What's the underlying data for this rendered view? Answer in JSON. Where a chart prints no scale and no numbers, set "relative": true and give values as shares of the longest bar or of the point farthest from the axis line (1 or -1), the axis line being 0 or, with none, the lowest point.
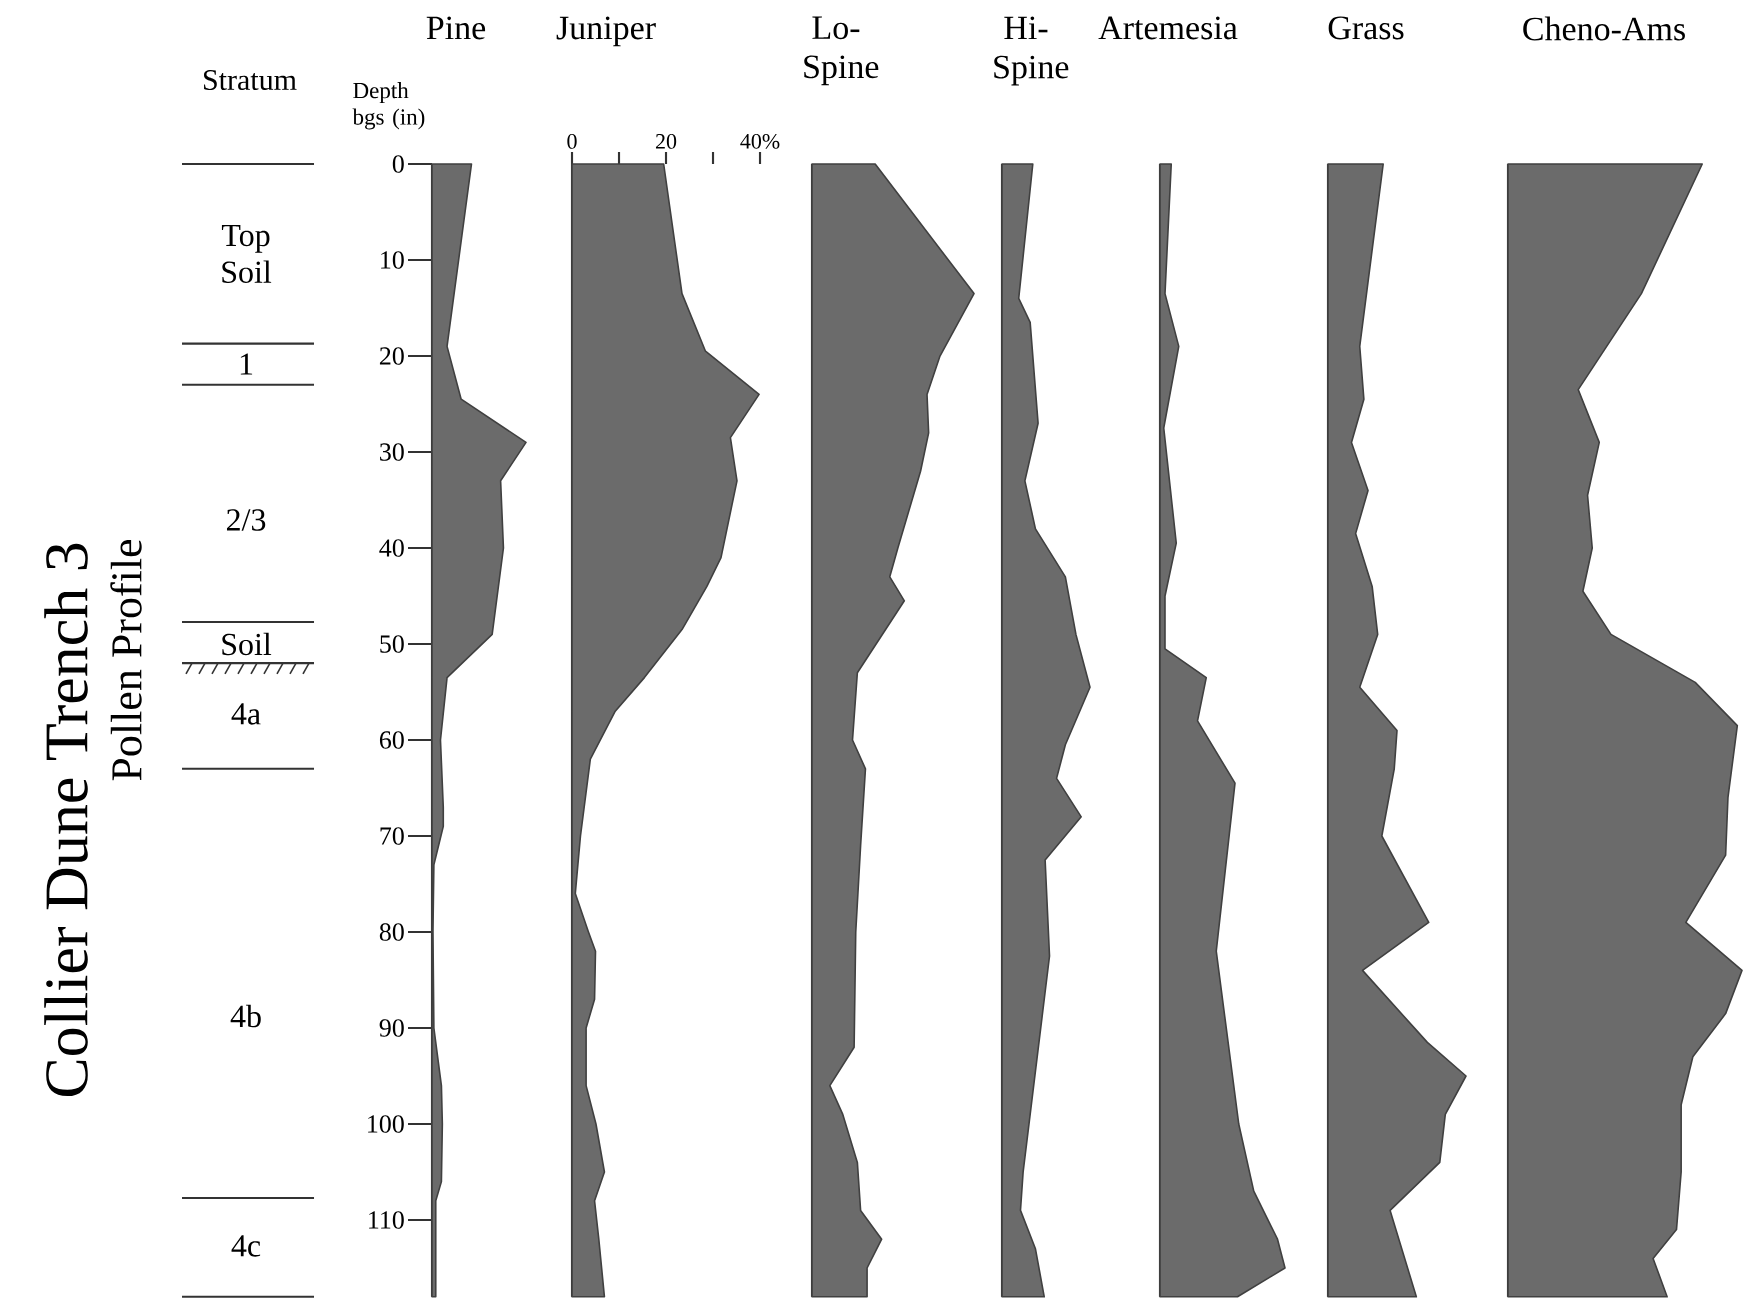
{
  "chart_data": [
    {
      "type": "other",
      "title": "Collier Dune Trench 3",
      "subtitle": "Pollen Profile",
      "annotations": [
        "Stratum",
        "Top Soil",
        "1",
        "2/3",
        "Soil",
        "4a",
        "4b",
        "4c"
      ]
    },
    {
      "type": "area",
      "orientation": "horizontal",
      "relative": true,
      "title": "Pine",
      "ylabel": "Depth bgs (in)",
      "color": "#6b6b6b",
      "ylim": [
        118,
        0
      ],
      "yticks": [
        0,
        10,
        20,
        30,
        40,
        50,
        60,
        70,
        80,
        90,
        100,
        110
      ],
      "tick_labels": "y",
      "x": [
        0,
        19,
        24.5,
        29,
        33,
        40,
        49,
        53.5,
        60,
        67,
        69,
        73,
        80,
        90,
        96,
        100,
        106,
        108,
        118
      ],
      "values": [
        0.42,
        0.16,
        0.31,
        1,
        0.73,
        0.76,
        0.64,
        0.16,
        0.09,
        0.12,
        0.12,
        0.02,
        0.01,
        0.02,
        0.1,
        0.11,
        0.1,
        0.04,
        0.04
      ]
    },
    {
      "type": "area",
      "orientation": "horizontal",
      "title": "Juniper",
      "color": "#6b6b6b",
      "xlim": [
        0,
        40
      ],
      "ylim": [
        118,
        0
      ],
      "xticks": [
        0,
        {
          "value": 10,
          "label": null
        },
        20,
        {
          "value": 30,
          "label": null
        },
        {
          "value": 40,
          "label": "40%"
        }
      ],
      "tick_labels": "x",
      "x": [
        0,
        13.5,
        19.5,
        24,
        28.5,
        33,
        41,
        44,
        48.5,
        53.5,
        57,
        62,
        70,
        76,
        80,
        82,
        87,
        90,
        96,
        100,
        105,
        108,
        112,
        118
      ],
      "values": [
        19.5,
        23.4,
        28.4,
        39.8,
        33.7,
        35.1,
        31.7,
        28.7,
        23.4,
        15.4,
        9.2,
        3.9,
        1.8,
        0.7,
        3.5,
        5.0,
        4.8,
        3.0,
        3.0,
        5.1,
        6.9,
        4.8,
        5.7,
        6.9
      ]
    },
    {
      "type": "area",
      "orientation": "horizontal",
      "relative": true,
      "title": "Lo-Spine",
      "color": "#6b6b6b",
      "ylim": [
        118,
        0
      ],
      "tick_labels": false,
      "x": [
        0,
        13.5,
        20,
        24,
        28,
        32,
        40,
        43,
        45.5,
        53,
        60,
        63,
        71,
        80,
        92,
        96,
        99,
        104,
        109,
        112,
        115,
        118
      ],
      "values": [
        0.39,
        1,
        0.79,
        0.71,
        0.72,
        0.67,
        0.53,
        0.48,
        0.57,
        0.28,
        0.25,
        0.33,
        0.3,
        0.27,
        0.26,
        0.11,
        0.19,
        0.28,
        0.3,
        0.43,
        0.34,
        0.34
      ]
    },
    {
      "type": "area",
      "orientation": "horizontal",
      "relative": true,
      "title": "Hi-Spine",
      "color": "#6b6b6b",
      "ylim": [
        118,
        0
      ],
      "tick_labels": false,
      "x": [
        0,
        14,
        16.5,
        27,
        33,
        38,
        43,
        49,
        54.5,
        60.5,
        64,
        68,
        72.5,
        82.5,
        105,
        109,
        113,
        118
      ],
      "values": [
        0.35,
        0.19,
        0.32,
        0.41,
        0.26,
        0.38,
        0.72,
        0.84,
        1,
        0.72,
        0.62,
        0.9,
        0.49,
        0.54,
        0.24,
        0.21,
        0.38,
        0.48
      ]
    },
    {
      "type": "area",
      "orientation": "horizontal",
      "relative": true,
      "title": "Artemesia",
      "color": "#6b6b6b",
      "ylim": [
        118,
        0
      ],
      "tick_labels": false,
      "x": [
        0,
        13.5,
        19,
        27.5,
        39.5,
        45,
        50.5,
        53.5,
        58,
        64.5,
        82,
        89,
        100,
        107,
        112,
        115,
        118
      ],
      "values": [
        0.09,
        0.04,
        0.15,
        0.03,
        0.13,
        0.04,
        0.04,
        0.37,
        0.3,
        0.6,
        0.45,
        0.52,
        0.63,
        0.75,
        0.94,
        1,
        0.62
      ]
    },
    {
      "type": "area",
      "orientation": "horizontal",
      "relative": true,
      "title": "Grass",
      "color": "#6b6b6b",
      "ylim": [
        118,
        0
      ],
      "tick_labels": false,
      "x": [
        0,
        19,
        24.5,
        29,
        34,
        38.5,
        44,
        49,
        54.5,
        59,
        63,
        70,
        79,
        84,
        91.5,
        95,
        99,
        104,
        109,
        118
      ],
      "values": [
        0.4,
        0.23,
        0.26,
        0.17,
        0.29,
        0.2,
        0.32,
        0.36,
        0.23,
        0.5,
        0.48,
        0.39,
        0.73,
        0.25,
        0.72,
        1,
        0.85,
        0.81,
        0.45,
        0.64
      ]
    },
    {
      "type": "area",
      "orientation": "horizontal",
      "relative": true,
      "title": "Cheno-Ams",
      "color": "#6b6b6b",
      "ylim": [
        118,
        0
      ],
      "tick_labels": false,
      "x": [
        0,
        13.5,
        23.5,
        29,
        34.5,
        40,
        44.5,
        49,
        54,
        58.5,
        66,
        72,
        79,
        84,
        88.5,
        93,
        98,
        105,
        111,
        114,
        118
      ],
      "values": [
        0.83,
        0.57,
        0.3,
        0.39,
        0.34,
        0.36,
        0.32,
        0.44,
        0.8,
        0.98,
        0.94,
        0.93,
        0.76,
        1,
        0.93,
        0.79,
        0.74,
        0.74,
        0.72,
        0.62,
        0.68
      ]
    }
  ]
}
